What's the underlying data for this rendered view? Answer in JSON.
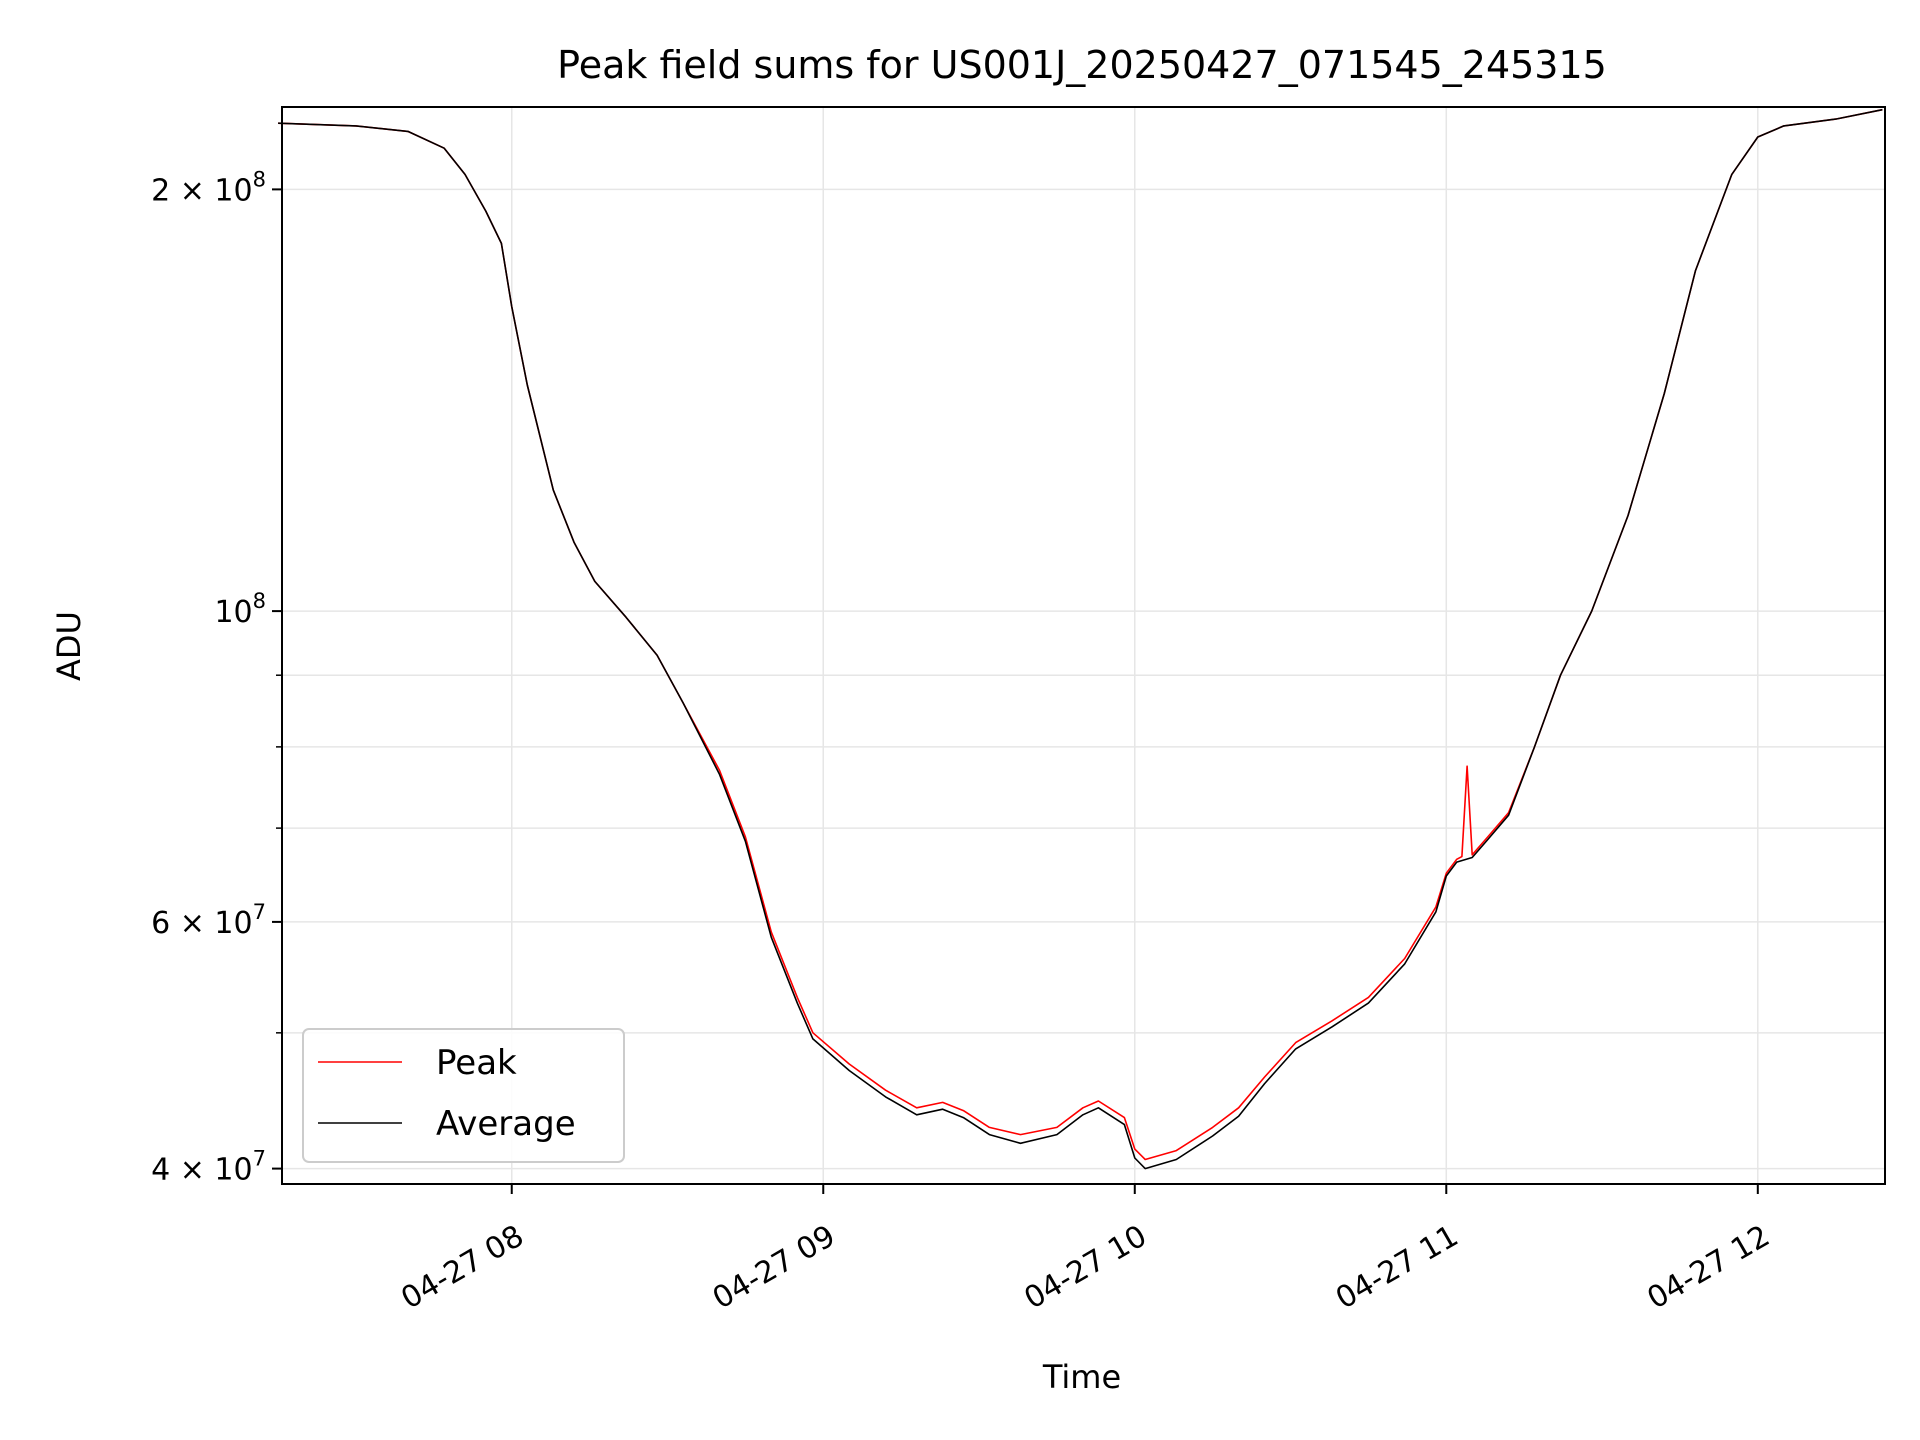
{
  "chart_data": {
    "type": "line",
    "title": "Peak field sums for US001J_20250427_071545_245315",
    "xlabel": "Time",
    "ylabel": "ADU",
    "yscale": "log",
    "grid": true,
    "legend_position": "lower-left",
    "xlim": [
      "04-27 07:15:45",
      "04-27 12:24:30"
    ],
    "ylim": [
      39000000,
      229000000
    ],
    "x_ticks": [
      "04-27 08",
      "04-27 09",
      "04-27 10",
      "04-27 11",
      "04-27 12"
    ],
    "y_ticks": [
      {
        "value": 40000000,
        "mantissa": "4",
        "exp": "7"
      },
      {
        "value": 60000000,
        "mantissa": "6",
        "exp": "7"
      },
      {
        "value": 100000000,
        "mantissa": "",
        "exp": "8"
      },
      {
        "value": 200000000,
        "mantissa": "2",
        "exp": "8"
      }
    ],
    "series": [
      {
        "name": "Peak",
        "color": "#ff0000",
        "points": [
          [
            "07:15",
            223000000
          ],
          [
            "07:30",
            222000000
          ],
          [
            "07:40",
            220000000
          ],
          [
            "07:47",
            214000000
          ],
          [
            "07:51",
            205000000
          ],
          [
            "07:55",
            193000000
          ],
          [
            "07:58",
            183000000
          ],
          [
            "08:00",
            165000000
          ],
          [
            "08:03",
            145000000
          ],
          [
            "08:08",
            122000000
          ],
          [
            "08:12",
            112000000
          ],
          [
            "08:16",
            105000000
          ],
          [
            "08:22",
            99000000
          ],
          [
            "08:28",
            93000000
          ],
          [
            "08:33",
            86000000
          ],
          [
            "08:40",
            77000000
          ],
          [
            "08:45",
            69000000
          ],
          [
            "08:50",
            59000000
          ],
          [
            "08:55",
            53000000
          ],
          [
            "08:58",
            50000000
          ],
          [
            "09:05",
            47500000
          ],
          [
            "09:12",
            45500000
          ],
          [
            "09:18",
            44200000
          ],
          [
            "09:23",
            44600000
          ],
          [
            "09:27",
            44000000
          ],
          [
            "09:32",
            42800000
          ],
          [
            "09:38",
            42300000
          ],
          [
            "09:45",
            42800000
          ],
          [
            "09:50",
            44200000
          ],
          [
            "09:53",
            44700000
          ],
          [
            "09:58",
            43500000
          ],
          [
            "10:00",
            41300000
          ],
          [
            "10:02",
            40600000
          ],
          [
            "10:08",
            41200000
          ],
          [
            "10:15",
            42800000
          ],
          [
            "10:20",
            44200000
          ],
          [
            "10:25",
            46500000
          ],
          [
            "10:31",
            49200000
          ],
          [
            "10:38",
            51000000
          ],
          [
            "10:45",
            53000000
          ],
          [
            "10:52",
            56500000
          ],
          [
            "10:58",
            61500000
          ],
          [
            "11:00",
            65000000
          ],
          [
            "11:02",
            66500000
          ],
          [
            "11:03",
            66800000
          ],
          [
            "11:04",
            77500000
          ],
          [
            "11:05",
            67000000
          ],
          [
            "11:08",
            69000000
          ],
          [
            "11:12",
            71800000
          ],
          [
            "11:17",
            80000000
          ],
          [
            "11:22",
            90000000
          ],
          [
            "11:28",
            100000000
          ],
          [
            "11:35",
            117000000
          ],
          [
            "11:42",
            143000000
          ],
          [
            "11:48",
            175000000
          ],
          [
            "11:55",
            205000000
          ],
          [
            "12:00",
            218000000
          ],
          [
            "12:05",
            222000000
          ],
          [
            "12:15",
            224500000
          ],
          [
            "12:24",
            228000000
          ]
        ]
      },
      {
        "name": "Average",
        "color": "#000000",
        "points": [
          [
            "07:15",
            223000000
          ],
          [
            "07:30",
            222000000
          ],
          [
            "07:40",
            220000000
          ],
          [
            "07:47",
            214000000
          ],
          [
            "07:51",
            205000000
          ],
          [
            "07:55",
            193000000
          ],
          [
            "07:58",
            183000000
          ],
          [
            "08:00",
            165000000
          ],
          [
            "08:03",
            145000000
          ],
          [
            "08:08",
            122000000
          ],
          [
            "08:12",
            112000000
          ],
          [
            "08:16",
            105000000
          ],
          [
            "08:22",
            99000000
          ],
          [
            "08:28",
            93000000
          ],
          [
            "08:33",
            86000000
          ],
          [
            "08:40",
            76500000
          ],
          [
            "08:45",
            68500000
          ],
          [
            "08:50",
            58500000
          ],
          [
            "08:55",
            52500000
          ],
          [
            "08:58",
            49500000
          ],
          [
            "09:05",
            47000000
          ],
          [
            "09:12",
            45000000
          ],
          [
            "09:18",
            43700000
          ],
          [
            "09:23",
            44100000
          ],
          [
            "09:27",
            43500000
          ],
          [
            "09:32",
            42300000
          ],
          [
            "09:38",
            41700000
          ],
          [
            "09:45",
            42300000
          ],
          [
            "09:50",
            43700000
          ],
          [
            "09:53",
            44200000
          ],
          [
            "09:58",
            43000000
          ],
          [
            "10:00",
            40700000
          ],
          [
            "10:02",
            40000000
          ],
          [
            "10:08",
            40600000
          ],
          [
            "10:15",
            42200000
          ],
          [
            "10:20",
            43600000
          ],
          [
            "10:25",
            46000000
          ],
          [
            "10:31",
            48700000
          ],
          [
            "10:38",
            50500000
          ],
          [
            "10:45",
            52500000
          ],
          [
            "10:52",
            56000000
          ],
          [
            "10:58",
            61000000
          ],
          [
            "11:00",
            64700000
          ],
          [
            "11:02",
            66200000
          ],
          [
            "11:05",
            66700000
          ],
          [
            "11:08",
            68700000
          ],
          [
            "11:12",
            71500000
          ],
          [
            "11:17",
            80000000
          ],
          [
            "11:22",
            90000000
          ],
          [
            "11:28",
            100000000
          ],
          [
            "11:35",
            117000000
          ],
          [
            "11:42",
            143000000
          ],
          [
            "11:48",
            175000000
          ],
          [
            "11:55",
            205000000
          ],
          [
            "12:00",
            218000000
          ],
          [
            "12:05",
            222000000
          ],
          [
            "12:15",
            224500000
          ],
          [
            "12:24",
            228000000
          ]
        ]
      }
    ]
  }
}
